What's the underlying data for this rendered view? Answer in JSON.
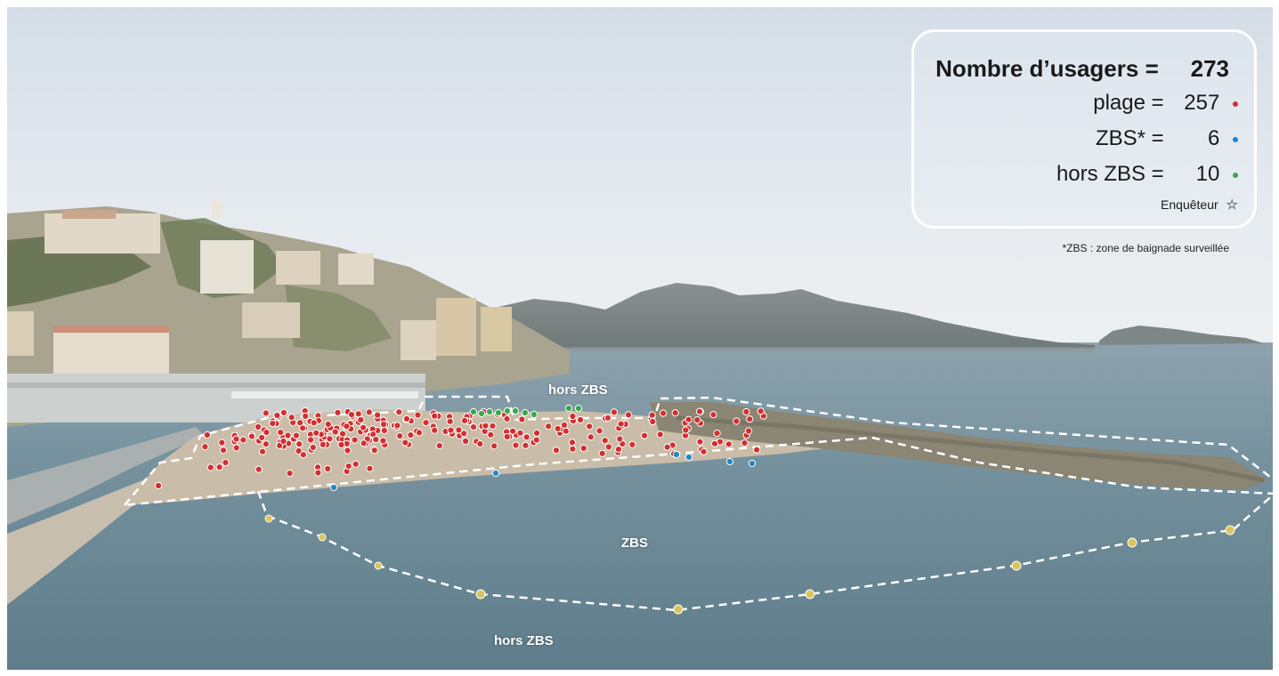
{
  "legend": {
    "total_label": "Nombre d’usagers =",
    "total_value": "273",
    "rows": [
      {
        "label": "plage =",
        "value": "257",
        "color": "#d32f2f"
      },
      {
        "label": "ZBS* =",
        "value": "6",
        "color": "#1e88c8"
      },
      {
        "label": "hors ZBS =",
        "value": "10",
        "color": "#3aa84a"
      }
    ],
    "enqueteur_label": "Enquêteur",
    "footnote": "*ZBS : zone de baignade surveillée"
  },
  "map_labels": {
    "hors_zbs_top": "hors ZBS",
    "zbs": "ZBS",
    "hors_zbs_bottom": "hors ZBS"
  },
  "colors": {
    "plage": "#d32f2f",
    "zbs": "#1e88c8",
    "hors_zbs": "#3aa84a",
    "sky": "#dfe6ee",
    "sea": "#6d8896"
  }
}
